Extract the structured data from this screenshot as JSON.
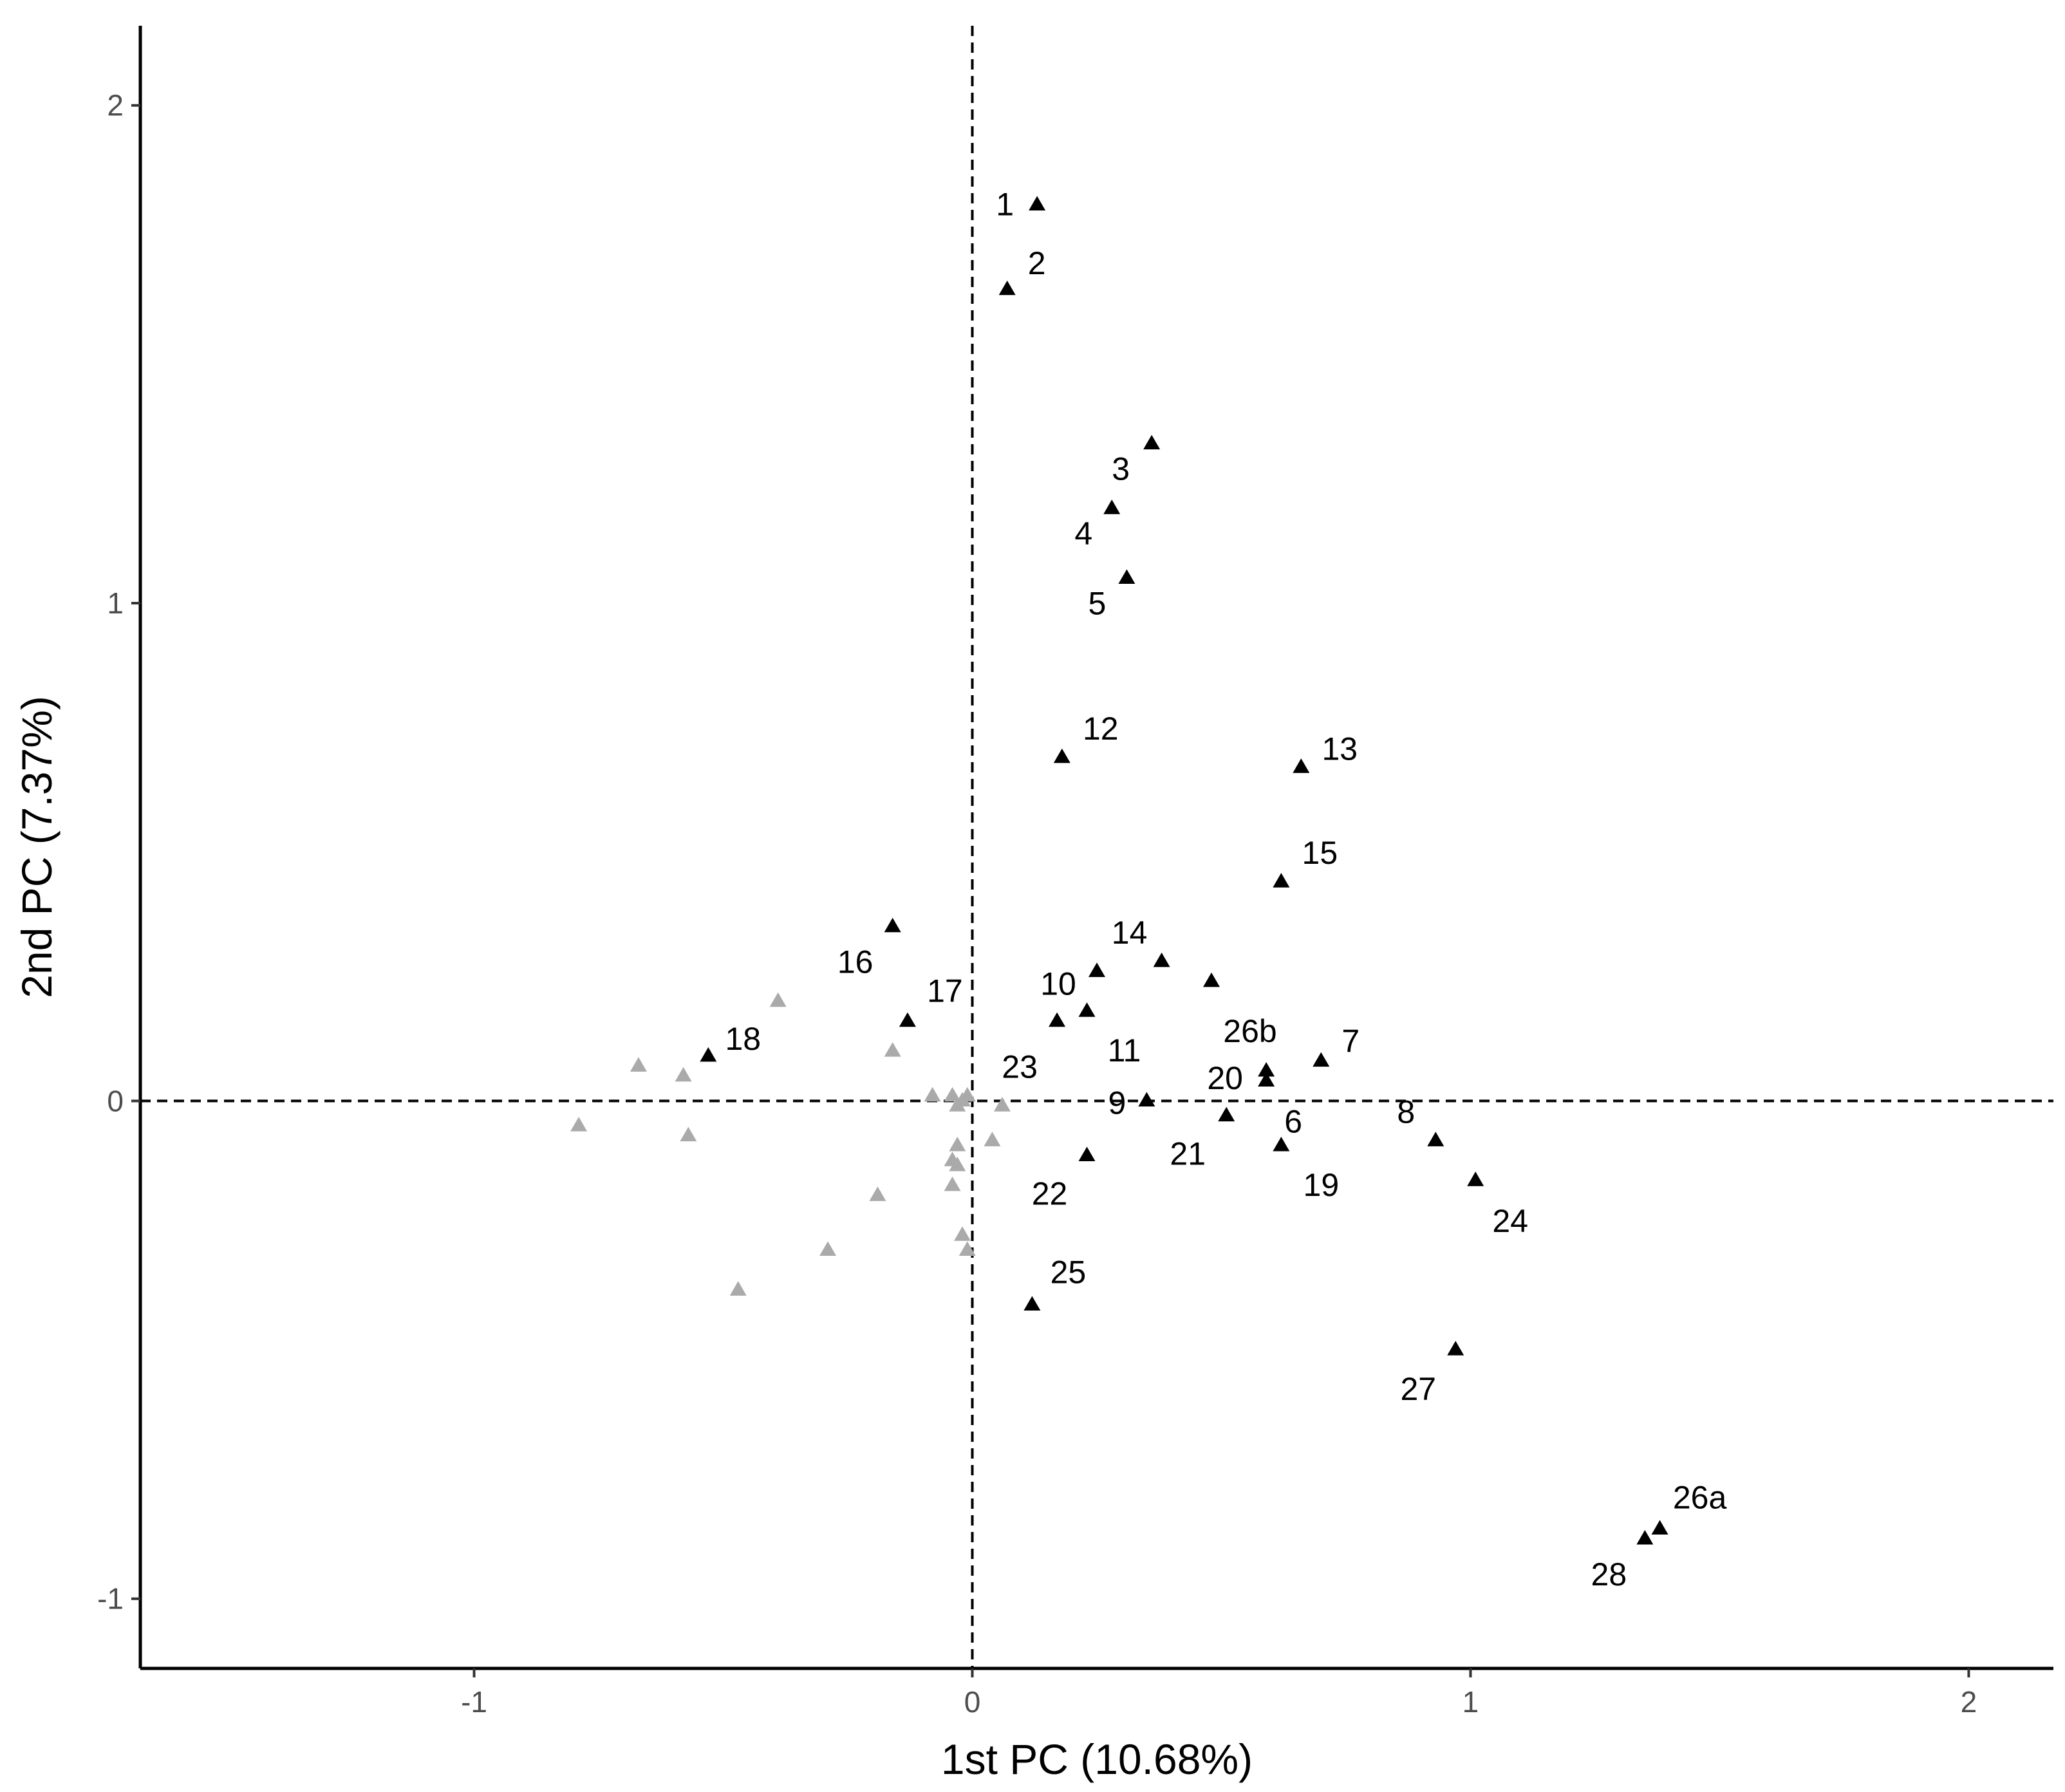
{
  "chart_data": {
    "type": "scatter",
    "title": "",
    "xlabel": "1st PC (10.68%)",
    "ylabel": "2nd PC (7.37%)",
    "xlim": [
      -1.67,
      2.17
    ],
    "ylim": [
      -1.14,
      2.16
    ],
    "xticks": [
      -1,
      0,
      1,
      2
    ],
    "yticks": [
      -1,
      0,
      1,
      2
    ],
    "xtick_labels": [
      "-1",
      "0",
      "1",
      "2"
    ],
    "ytick_labels": [
      "-1",
      "0",
      "1",
      "2"
    ],
    "grid": false,
    "reference_lines": {
      "x": 0,
      "y": 0,
      "style": "dashed"
    },
    "colors": {
      "labeled": "#000000",
      "unlabeled": "#aaaaaa"
    },
    "series": [
      {
        "points": [
          {
            "label": "1",
            "x": 0.13,
            "y": 1.8
          },
          {
            "label": "2",
            "x": 0.07,
            "y": 1.63
          },
          {
            "label": "3",
            "x": 0.36,
            "y": 1.32
          },
          {
            "label": "4",
            "x": 0.28,
            "y": 1.19
          },
          {
            "label": "5",
            "x": 0.31,
            "y": 1.05
          },
          {
            "label": "12",
            "x": 0.18,
            "y": 0.69
          },
          {
            "label": "13",
            "x": 0.66,
            "y": 0.67
          },
          {
            "label": "15",
            "x": 0.62,
            "y": 0.44
          },
          {
            "label": "16",
            "x": -0.16,
            "y": 0.35
          },
          {
            "label": "14",
            "x": 0.38,
            "y": 0.28
          },
          {
            "label": "10",
            "x": 0.25,
            "y": 0.26
          },
          {
            "label": "26b",
            "x": 0.48,
            "y": 0.24
          },
          {
            "label": "17",
            "x": -0.13,
            "y": 0.16
          },
          {
            "label": "18",
            "x": -0.53,
            "y": 0.09
          },
          {
            "label": "11",
            "x": 0.23,
            "y": 0.18
          },
          {
            "label": "23",
            "x": 0.17,
            "y": 0.16
          },
          {
            "label": "7",
            "x": 0.7,
            "y": 0.08
          },
          {
            "label": "20",
            "x": 0.59,
            "y": 0.06
          },
          {
            "label": "6",
            "x": 0.59,
            "y": 0.04
          },
          {
            "label": "9",
            "x": 0.35,
            "y": 0.0
          },
          {
            "label": "21",
            "x": 0.51,
            "y": -0.03
          },
          {
            "label": "19",
            "x": 0.62,
            "y": -0.09
          },
          {
            "label": "22",
            "x": 0.23,
            "y": -0.11
          },
          {
            "label": "8",
            "x": 0.93,
            "y": -0.08
          },
          {
            "label": "24",
            "x": 1.01,
            "y": -0.16
          },
          {
            "label": "25",
            "x": 0.12,
            "y": -0.41
          },
          {
            "label": "27",
            "x": 0.97,
            "y": -0.5
          },
          {
            "label": "26a",
            "x": 1.38,
            "y": -0.86
          },
          {
            "label": "28",
            "x": 1.35,
            "y": -0.88
          }
        ]
      },
      {
        "points": [
          {
            "x": -0.39,
            "y": 0.2
          },
          {
            "x": -0.67,
            "y": 0.07
          },
          {
            "x": -0.58,
            "y": 0.05
          },
          {
            "x": -0.79,
            "y": -0.05
          },
          {
            "x": -0.57,
            "y": -0.07
          },
          {
            "x": -0.16,
            "y": 0.1
          },
          {
            "x": -0.08,
            "y": 0.01
          },
          {
            "x": -0.04,
            "y": 0.01
          },
          {
            "x": -0.02,
            "y": 0.0
          },
          {
            "x": -0.01,
            "y": 0.01
          },
          {
            "x": -0.03,
            "y": -0.01
          },
          {
            "x": 0.06,
            "y": -0.01
          },
          {
            "x": 0.04,
            "y": -0.08
          },
          {
            "x": -0.03,
            "y": -0.09
          },
          {
            "x": -0.04,
            "y": -0.12
          },
          {
            "x": -0.03,
            "y": -0.13
          },
          {
            "x": -0.04,
            "y": -0.17
          },
          {
            "x": -0.19,
            "y": -0.19
          },
          {
            "x": -0.02,
            "y": -0.27
          },
          {
            "x": -0.01,
            "y": -0.3
          },
          {
            "x": -0.29,
            "y": -0.3
          },
          {
            "x": -0.47,
            "y": -0.38
          }
        ]
      }
    ]
  }
}
